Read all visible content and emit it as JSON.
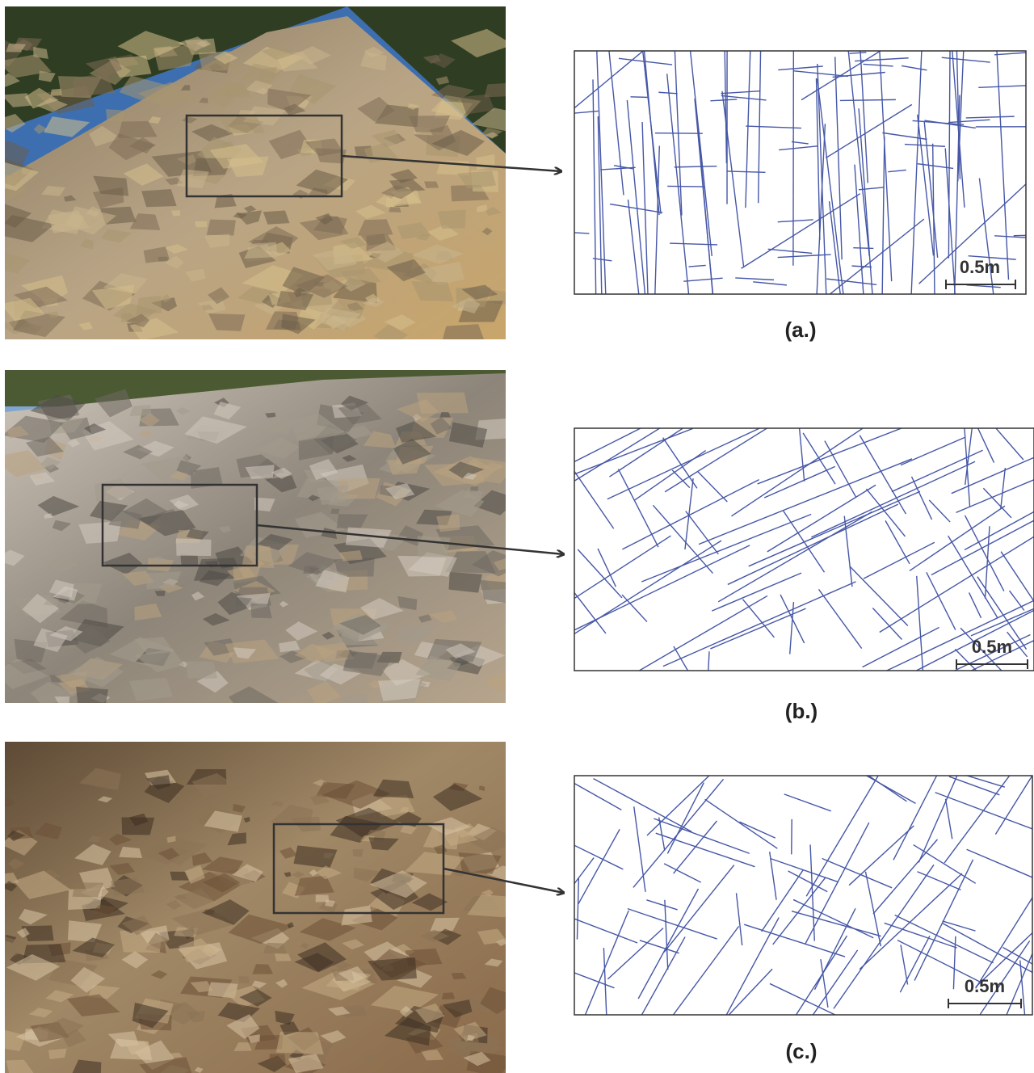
{
  "panels": [
    {
      "label": "(a.)",
      "scale_label": "0.5m"
    },
    {
      "label": "(b.)",
      "scale_label": "0.5m"
    },
    {
      "label": "(c.)",
      "scale_label": "0.5m"
    }
  ]
}
